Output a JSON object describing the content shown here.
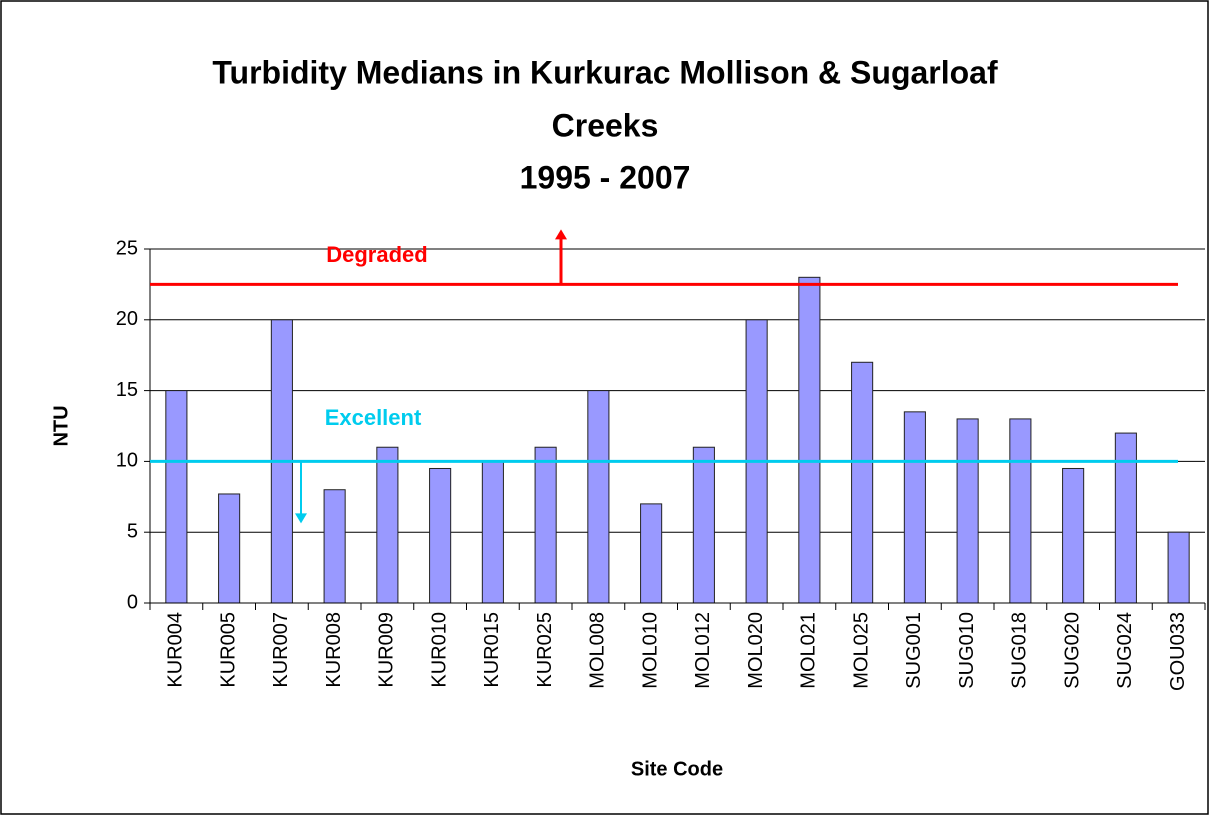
{
  "chart_data": {
    "type": "bar",
    "title": [
      "Turbidity Medians in Kurkurac Mollison & Sugarloaf",
      "Creeks",
      "1995 - 2007"
    ],
    "x_label": "Site Code",
    "y_label": "NTU",
    "categories": [
      "KUR004",
      "KUR005",
      "KUR007",
      "KUR008",
      "KUR009",
      "KUR010",
      "KUR015",
      "KUR025",
      "MOL008",
      "MOL010",
      "MOL012",
      "MOL020",
      "MOL021",
      "MOL025",
      "SUG001",
      "SUG010",
      "SUG018",
      "SUG020",
      "SUG024",
      "GOU033"
    ],
    "values": [
      15,
      7.7,
      20,
      8,
      11,
      9.5,
      10,
      11,
      15,
      7,
      11,
      20,
      23,
      17,
      13.5,
      13,
      13,
      9.5,
      12,
      5
    ],
    "color": "#9999ff",
    "ylim": [
      0,
      25
    ],
    "yticks": [
      0,
      5,
      10,
      15,
      20,
      25
    ],
    "grid": true,
    "reference_lines": [
      {
        "label": "Degraded",
        "value": 22.5,
        "color": "#ff0000",
        "direction": "up"
      },
      {
        "label": "Excellent",
        "value": 10,
        "color": "#00ccee",
        "direction": "down"
      }
    ]
  }
}
